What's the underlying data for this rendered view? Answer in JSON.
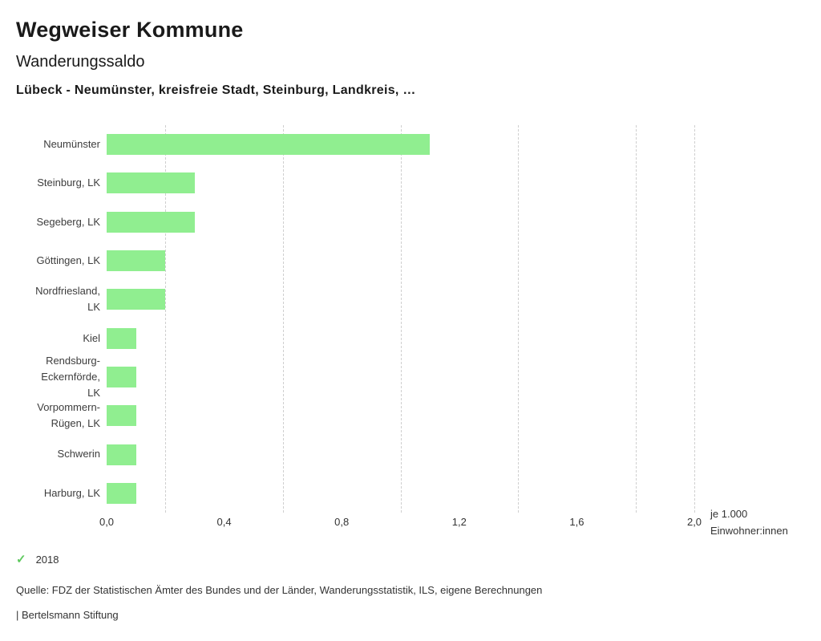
{
  "header": {
    "title": "Wegweiser Kommune",
    "subtitle": "Wanderungssaldo",
    "region_line": "Lübeck - Neumünster, kreisfreie Stadt, Steinburg, Landkreis, …"
  },
  "chart_data": {
    "type": "bar",
    "orientation": "horizontal",
    "title": "Wanderungssaldo",
    "categories": [
      "Neumünster",
      "Steinburg, LK",
      "Segeberg, LK",
      "Göttingen, LK",
      "Nordfriesland,\nLK",
      "Kiel",
      "Rendsburg-\nEckernförde,\nLK",
      "Vorpommern-\nRügen, LK",
      "Schwerin",
      "Harburg, LK"
    ],
    "values": [
      1.1,
      0.3,
      0.3,
      0.2,
      0.2,
      0.1,
      0.1,
      0.1,
      0.1,
      0.1
    ],
    "series_name": "2018",
    "xlim": [
      0,
      2.0
    ],
    "xticks": [
      0,
      0.4,
      0.8,
      1.2,
      1.6,
      2.0
    ],
    "xtick_labels": [
      "0,0",
      "0,4",
      "0,8",
      "1,2",
      "1,6",
      "2,0"
    ],
    "gridlines": [
      0.2,
      0.6,
      1.0,
      1.4,
      1.8,
      2.0
    ],
    "unit_label": "je 1.000\nEinwohner:innen",
    "bar_color": "#90ee90",
    "grid": true,
    "legend_position": "bottom-left"
  },
  "legend": {
    "year": "2018",
    "check_icon": "✓",
    "check_color": "#5ec95e"
  },
  "footer": {
    "source": "Quelle: FDZ der Statistischen Ämter des Bundes und der Länder, Wanderungsstatistik, ILS, eigene Berechnungen",
    "brand": "| Bertelsmann Stiftung"
  }
}
